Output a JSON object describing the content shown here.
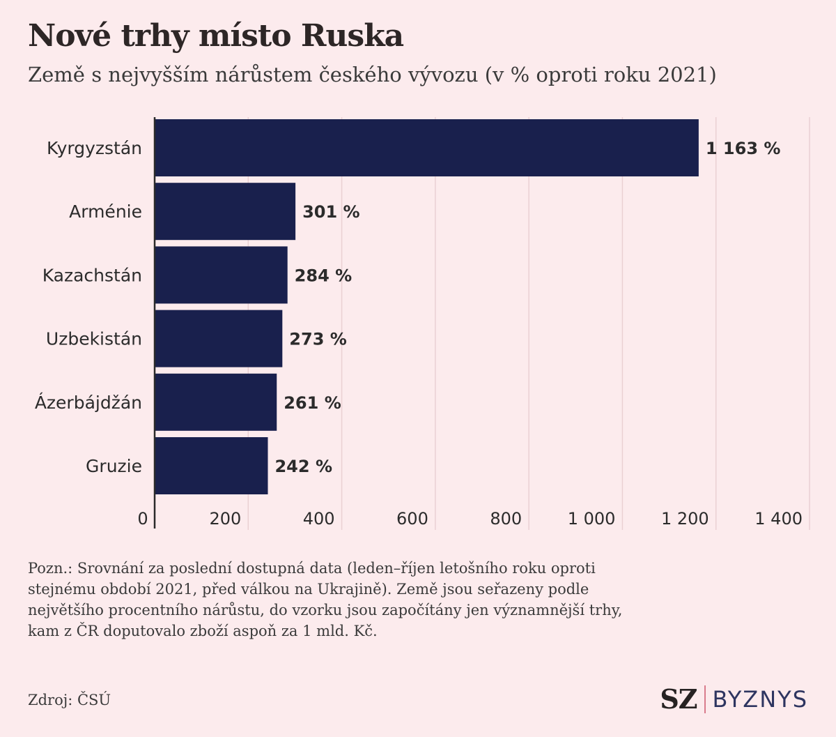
{
  "title": "Nové trhy místo Ruska",
  "subtitle": "Země s nejvyšším nárůstem českého vývozu (v % oproti roku 2021)",
  "chart_data": {
    "type": "bar",
    "orientation": "horizontal",
    "categories": [
      "Kyrgyzstán",
      "Arménie",
      "Kazachstán",
      "Uzbekistán",
      "Ázerbájdžán",
      "Gruzie"
    ],
    "values": [
      1163,
      301,
      284,
      273,
      261,
      242
    ],
    "value_labels": [
      "1 163 %",
      "301 %",
      "284 %",
      "273 %",
      "261 %",
      "242 %"
    ],
    "xlim": [
      0,
      1400
    ],
    "xticks": [
      0,
      200,
      400,
      600,
      800,
      1000,
      1200,
      1400
    ],
    "xtick_labels": [
      "0",
      "200",
      "400",
      "600",
      "800",
      "1 000",
      "1 200",
      "1 400"
    ],
    "grid": "vertical",
    "bar_color": "#19204d",
    "grid_color": "#ead0d3"
  },
  "note": "Pozn.: Srovnání za poslední dostupná data (leden–říjen letošního roku oproti stejnému období 2021, před válkou na Ukrajině). Země jsou seřazeny podle největšího procentního nárůstu, do vzorku jsou započítány jen významnější trhy, kam z ČR doputovalo zboží aspoň za 1 mld. Kč.",
  "source": "Zdroj: ČSÚ",
  "logo": {
    "brand": "SZ",
    "section": "BYZNYS"
  }
}
